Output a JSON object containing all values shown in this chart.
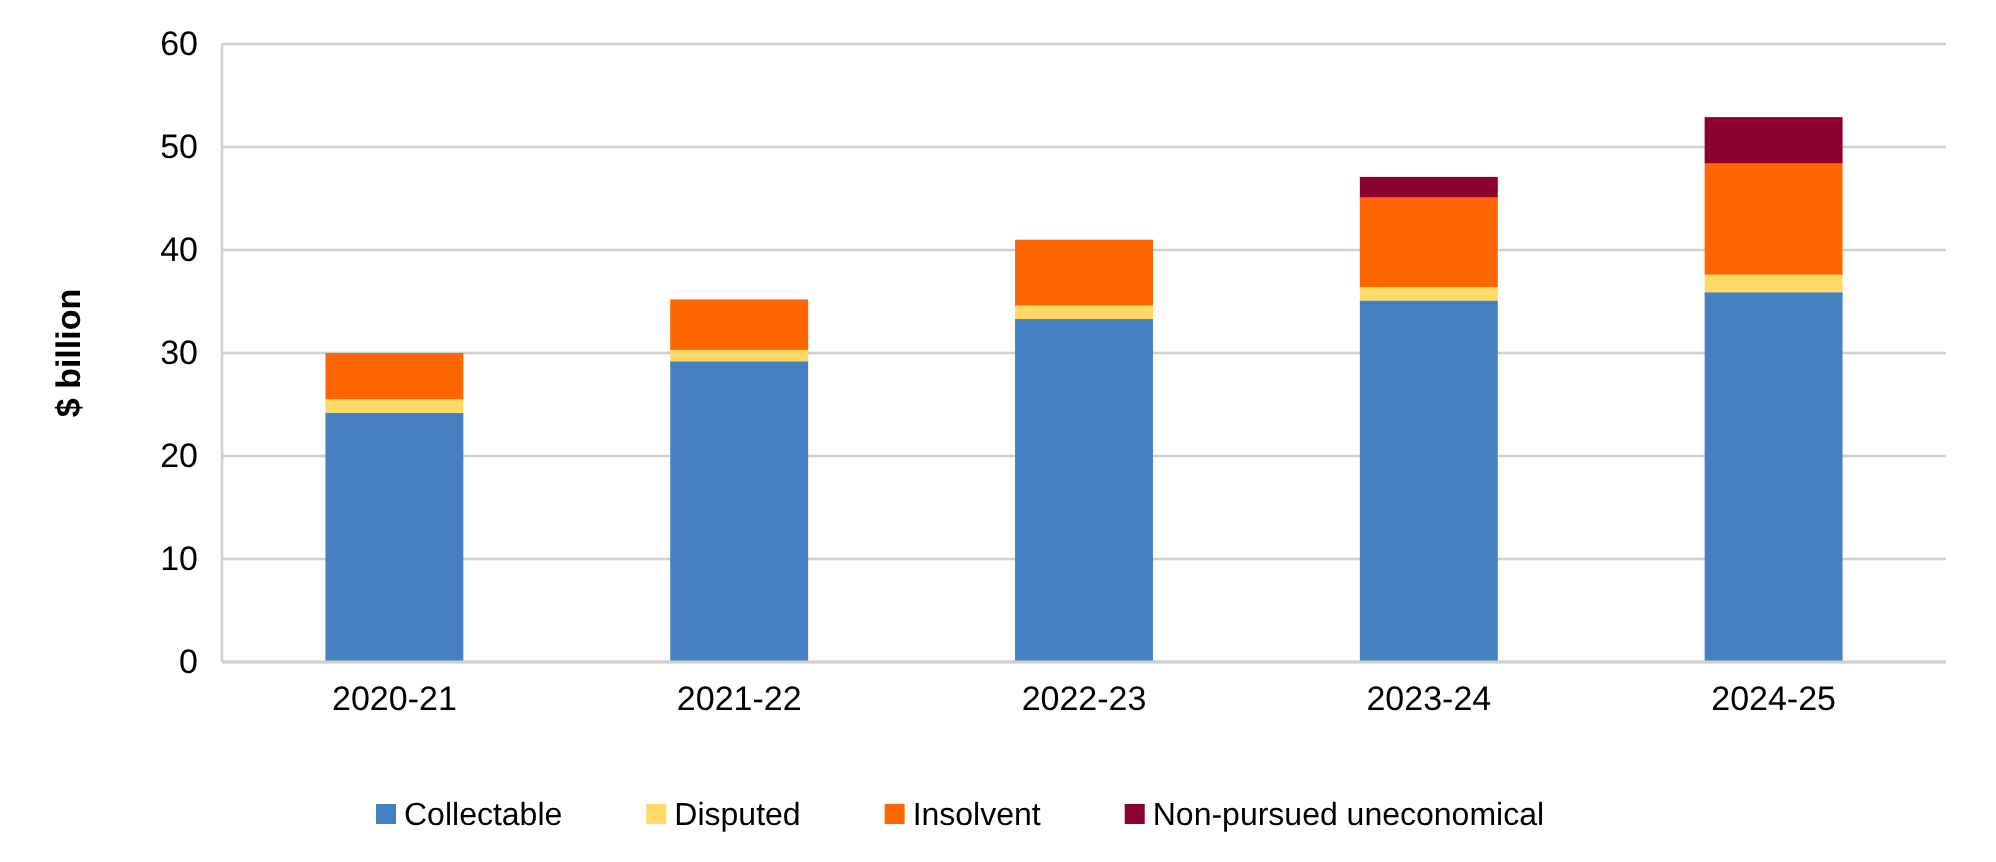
{
  "chart_data": {
    "type": "bar",
    "stacked": true,
    "ylabel": "$ billion",
    "categories": [
      "2020-21",
      "2021-22",
      "2022-23",
      "2023-24",
      "2024-25"
    ],
    "series": [
      {
        "name": "Collectable",
        "color": "#4580c1",
        "values": [
          24.2,
          29.2,
          33.3,
          35.1,
          35.9
        ]
      },
      {
        "name": "Disputed",
        "color": "#ffd966",
        "values": [
          1.3,
          1.1,
          1.3,
          1.3,
          1.7
        ]
      },
      {
        "name": "Insolvent",
        "color": "#ff6600",
        "values": [
          4.5,
          4.9,
          6.4,
          8.7,
          10.8
        ]
      },
      {
        "name": "Non-pursued uneconomical",
        "color": "#8b002c",
        "values": [
          null,
          null,
          null,
          2.0,
          4.5
        ]
      }
    ],
    "ylim": [
      0,
      60
    ],
    "yticks": [
      0,
      10,
      20,
      30,
      40,
      50,
      60
    ],
    "grid": "y",
    "legend": "bottom"
  }
}
